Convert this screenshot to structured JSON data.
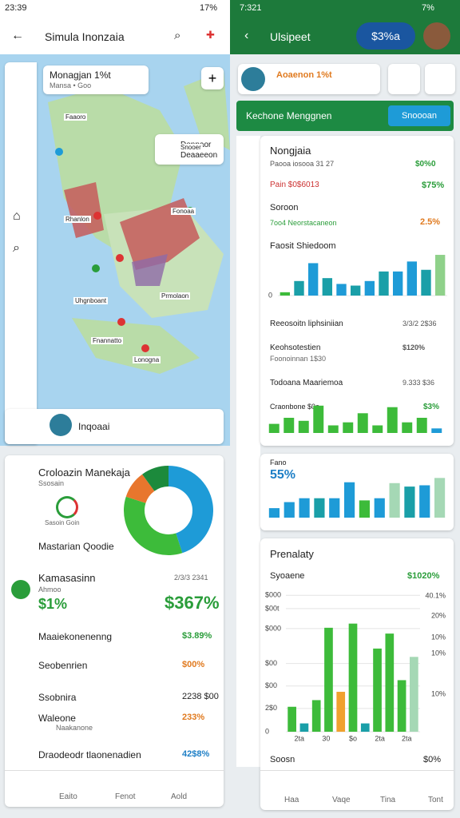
{
  "left": {
    "status": {
      "time": "23:39",
      "battery": "17%"
    },
    "appbar": {
      "title": "Simula Inonzaia"
    },
    "map": {
      "card_title": "Monagjan 1%t",
      "card_sub": "Mansa • Goo",
      "legend_title": "Dennaor",
      "legend_sub": "Deaaeeon",
      "labels": [
        "Faaoro",
        "Snooer",
        "Fonoaa",
        "Rhanlon",
        "Uhgnboant",
        "Prmolaon",
        "Fnannatto",
        "Lonogna"
      ],
      "footer_name": "Inqoaai"
    },
    "summary": {
      "title": "Croloazin Manekaja",
      "sub": "Ssosain",
      "ring_label": "Sasoin Goin",
      "item": "Mastarian Qoodie",
      "donut": {
        "type": "pie",
        "values": [
          45,
          35,
          10,
          10
        ],
        "colors": [
          "#1e9bd7",
          "#3dbb3a",
          "#e8762d",
          "#1c8a3c"
        ]
      }
    },
    "stats": {
      "title": "Kamasasinn",
      "sub": "Ahmoo",
      "code": "2/3/3 2341",
      "value1": "$1%",
      "value2": "$367%",
      "rows": [
        {
          "label": "Maaiekonenenng",
          "value": "$3.89%"
        },
        {
          "label": "Seobenrien",
          "value": "$00%"
        },
        {
          "label": "Ssobnira",
          "value": "2238 $00"
        },
        {
          "label": "Waleone",
          "sub": "Naakanone",
          "value": "233%"
        },
        {
          "label": "Draodeodr tlaonenadien",
          "value": "42$8%"
        }
      ]
    },
    "nav": [
      "Eaito",
      "Fenot",
      "Aold"
    ]
  },
  "right": {
    "status": {
      "time": "7:321",
      "battery": "7%"
    },
    "appbar": {
      "title": "Ulsipeet",
      "badge": "$3%a"
    },
    "topcard": {
      "title": "Aoaenon 1%t"
    },
    "banner": {
      "title": "Kechone Menggnen",
      "button": "Snoooan"
    },
    "card": {
      "title": "Nongjaia",
      "line": "Paooa iosooa 31 27",
      "line_value": "$0%0",
      "row1": "Pain $0$6013",
      "row1_value": "$75%",
      "row2": "Soroon",
      "row2_sub": "7oo4 Neorstacaneon",
      "row2_value": "2.5%",
      "chart_title": "Faosit Shiedoom",
      "chart": {
        "type": "bar",
        "values": [
          8,
          35,
          78,
          42,
          28,
          24,
          35,
          58,
          58,
          82,
          62,
          98
        ],
        "colors": [
          "#3dbb3a",
          "#1a9fa8",
          "#1e9bd7",
          "#1a9fa8",
          "#1e9bd7",
          "#1a9fa8",
          "#1e9bd7",
          "#1a9fa8",
          "#1e9bd7",
          "#1e9bd7",
          "#1a9fa8",
          "#8fd18a"
        ],
        "ylim": [
          0,
          100
        ],
        "yticks": [
          0
        ]
      }
    },
    "rows": [
      {
        "label": "Reeosoitn liphsiniian",
        "value": "3/3/2 2$36"
      },
      {
        "label": "Keohsotestien",
        "sub": "Foonoinnan 1$30",
        "value": "$120%"
      },
      {
        "label": "Todoana Maariemoa",
        "value": "9.333 $36"
      }
    ],
    "mini": {
      "label": "Craonbone $0o",
      "value": "$3%",
      "chart": {
        "type": "bar",
        "values": [
          12,
          20,
          16,
          36,
          10,
          14,
          26,
          10,
          34,
          14,
          20,
          6
        ],
        "colors": [
          "#3dbb3a",
          "#3dbb3a",
          "#3dbb3a",
          "#3dbb3a",
          "#3dbb3a",
          "#3dbb3a",
          "#3dbb3a",
          "#3dbb3a",
          "#3dbb3a",
          "#3dbb3a",
          "#3dbb3a",
          "#1e9bd7"
        ],
        "ylim": [
          0,
          40
        ]
      }
    },
    "chart2": {
      "title": "Fano",
      "value": "55%",
      "chart": {
        "type": "bar",
        "values": [
          22,
          36,
          45,
          45,
          45,
          82,
          40,
          45,
          80,
          72,
          75,
          92
        ],
        "colors": [
          "#1e9bd7",
          "#1e9bd7",
          "#1e9bd7",
          "#1a9fa8",
          "#1e9bd7",
          "#1e9bd7",
          "#3dbb3a",
          "#1e9bd7",
          "#a5d8b5",
          "#1a9fa8",
          "#1e9bd7",
          "#a5d8b5"
        ],
        "ylim": [
          0,
          100
        ]
      }
    },
    "chart3": {
      "title": "Prenalaty",
      "sub": "Syoaene",
      "value": "$1020%",
      "chart": {
        "type": "bar",
        "values": [
          30,
          10,
          38,
          125,
          48,
          130,
          10,
          100,
          118,
          62,
          90
        ],
        "colors": [
          "#3dbb3a",
          "#1a9fa8",
          "#3dbb3a",
          "#3dbb3a",
          "#f0a12e",
          "#3dbb3a",
          "#1a9fa8",
          "#3dbb3a",
          "#3dbb3a",
          "#3dbb3a",
          "#a5d8b5"
        ],
        "ylim": [
          0,
          170
        ],
        "yticks": [
          {
            "value": 0,
            "label": "0"
          },
          {
            "value": 28,
            "label": "2$0"
          },
          {
            "value": 55,
            "label": "$00"
          },
          {
            "value": 82,
            "label": "$00"
          },
          {
            "value": 124,
            "label": "$000"
          },
          {
            "value": 148,
            "label": "$00t"
          },
          {
            "value": 164,
            "label": "$000"
          }
        ],
        "y2lim": [
          0,
          170
        ],
        "y2ticks": [
          {
            "value": 45,
            "label": "10%"
          },
          {
            "value": 94,
            "label": "10%"
          },
          {
            "value": 113,
            "label": "10%"
          },
          {
            "value": 139,
            "label": "20%"
          },
          {
            "value": 163,
            "label": "40.1%"
          }
        ]
      },
      "xlabels": [
        "2ta",
        "30",
        "$o",
        "2ta",
        "2ta"
      ]
    },
    "footer": {
      "label": "Soosn",
      "value": "$0%"
    },
    "nav": [
      "Haa",
      "Vaqe",
      "Tina",
      "Tont"
    ]
  }
}
